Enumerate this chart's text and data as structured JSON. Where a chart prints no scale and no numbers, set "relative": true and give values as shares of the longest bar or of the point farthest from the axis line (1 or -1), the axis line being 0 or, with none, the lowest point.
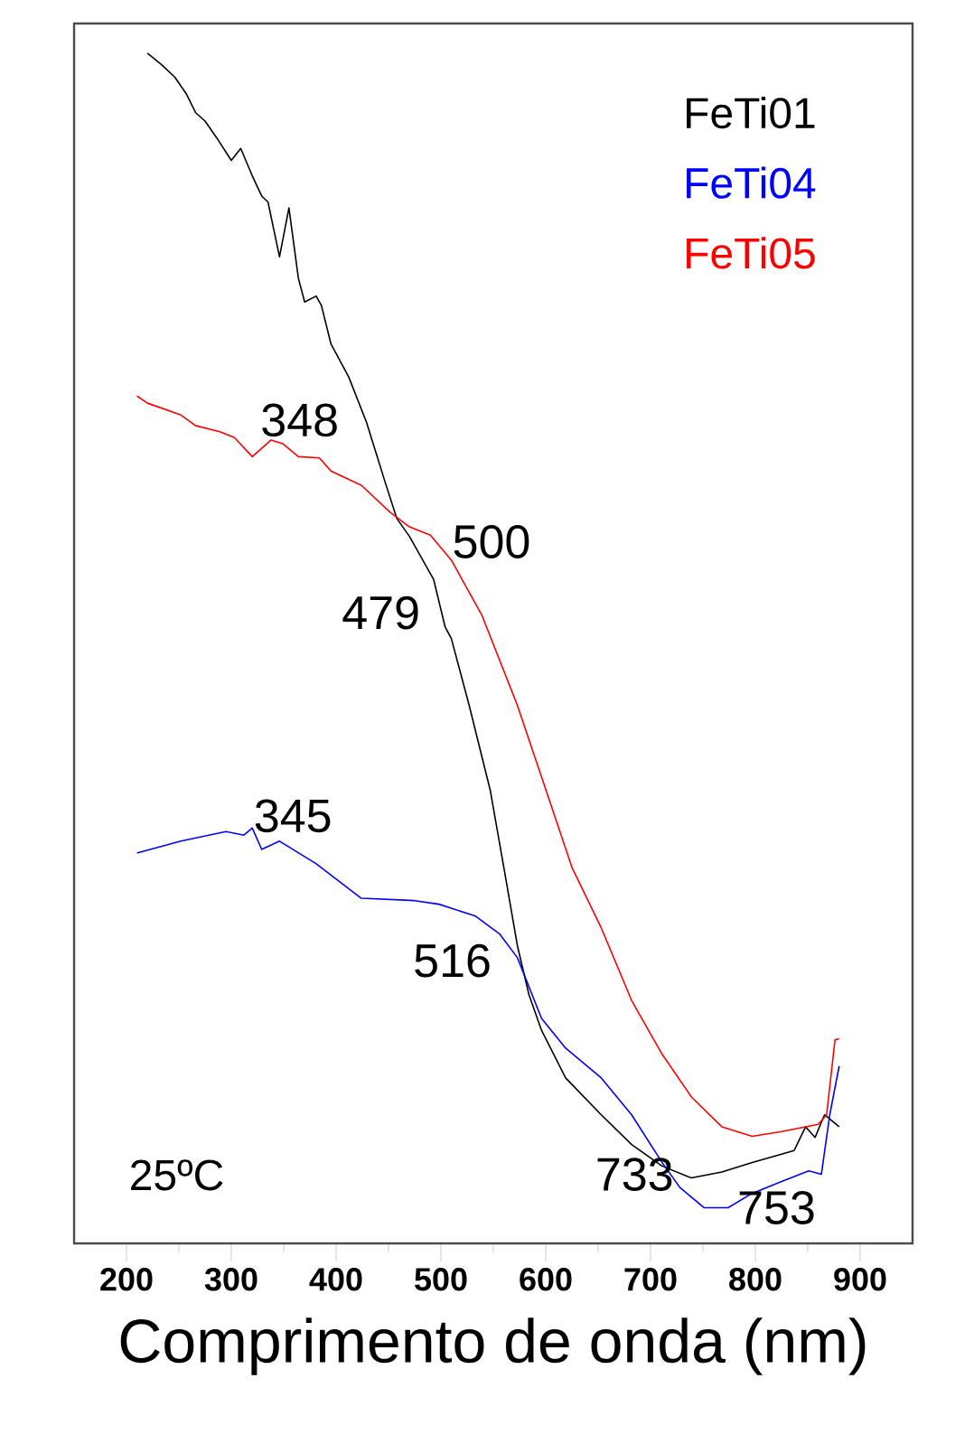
{
  "chart_data": {
    "type": "line",
    "relative": true,
    "xlabel": "Comprimento de onda (nm)",
    "xlim": [
      150,
      950
    ],
    "xticks": [
      200,
      300,
      400,
      500,
      600,
      700,
      800,
      900
    ],
    "legend": "top right",
    "series": [
      {
        "name": "FeTi01",
        "color": "#000000",
        "x": [
          220,
          234,
          246,
          257,
          266,
          275,
          286,
          300,
          309,
          320,
          329,
          335,
          346,
          355,
          364,
          370,
          381,
          386,
          395,
          412,
          429,
          447,
          458,
          470,
          493,
          504,
          510,
          527,
          547,
          561,
          573,
          584,
          596,
          619,
          653,
          682,
          711,
          739,
          768,
          797,
          825,
          837,
          848,
          857,
          866,
          880
        ],
        "values": [
          1.0,
          0.99,
          0.98,
          0.966,
          0.95,
          0.943,
          0.929,
          0.91,
          0.92,
          0.897,
          0.88,
          0.875,
          0.829,
          0.87,
          0.811,
          0.791,
          0.796,
          0.788,
          0.756,
          0.728,
          0.69,
          0.639,
          0.609,
          0.594,
          0.558,
          0.518,
          0.508,
          0.452,
          0.381,
          0.311,
          0.25,
          0.209,
          0.179,
          0.139,
          0.108,
          0.083,
          0.065,
          0.055,
          0.06,
          0.068,
          0.075,
          0.078,
          0.098,
          0.089,
          0.108,
          0.098
        ]
      },
      {
        "name": "FeTi04",
        "color": "#0000ff",
        "x": [
          210,
          252,
          295,
          312,
          320,
          329,
          346,
          381,
          424,
          475,
          498,
          533,
          556,
          573,
          596,
          619,
          653,
          682,
          711,
          728,
          751,
          774,
          797,
          825,
          851,
          863,
          871,
          880
        ],
        "values": [
          0.328,
          0.338,
          0.346,
          0.343,
          0.349,
          0.331,
          0.338,
          0.319,
          0.29,
          0.288,
          0.285,
          0.275,
          0.26,
          0.24,
          0.189,
          0.164,
          0.139,
          0.108,
          0.068,
          0.047,
          0.03,
          0.03,
          0.042,
          0.052,
          0.061,
          0.058,
          0.108,
          0.149
        ]
      },
      {
        "name": "FeTi05",
        "color": "#ff0000",
        "x": [
          210,
          220,
          252,
          266,
          289,
          303,
          320,
          338,
          349,
          364,
          384,
          395,
          424,
          452,
          470,
          490,
          510,
          539,
          573,
          596,
          625,
          653,
          682,
          711,
          739,
          768,
          797,
          825,
          860,
          868,
          876,
          880
        ],
        "values": [
          0.712,
          0.706,
          0.696,
          0.687,
          0.682,
          0.677,
          0.661,
          0.675,
          0.672,
          0.661,
          0.66,
          0.649,
          0.637,
          0.614,
          0.602,
          0.595,
          0.574,
          0.528,
          0.452,
          0.392,
          0.316,
          0.265,
          0.204,
          0.159,
          0.123,
          0.098,
          0.09,
          0.094,
          0.1,
          0.108,
          0.171,
          0.172
        ]
      }
    ],
    "annotations": [
      {
        "text": "348",
        "x": 348,
        "y": 0.672
      },
      {
        "text": "500",
        "x": 500,
        "y": 0.585
      },
      {
        "text": "479",
        "x": 479,
        "y": 0.58
      },
      {
        "text": "345",
        "x": 345,
        "y": 0.338
      },
      {
        "text": "516",
        "x": 516,
        "y": 0.277
      },
      {
        "text": "733",
        "x": 733,
        "y": 0.055
      },
      {
        "text": "753",
        "x": 753,
        "y": 0.03
      },
      "25ºC"
    ]
  }
}
